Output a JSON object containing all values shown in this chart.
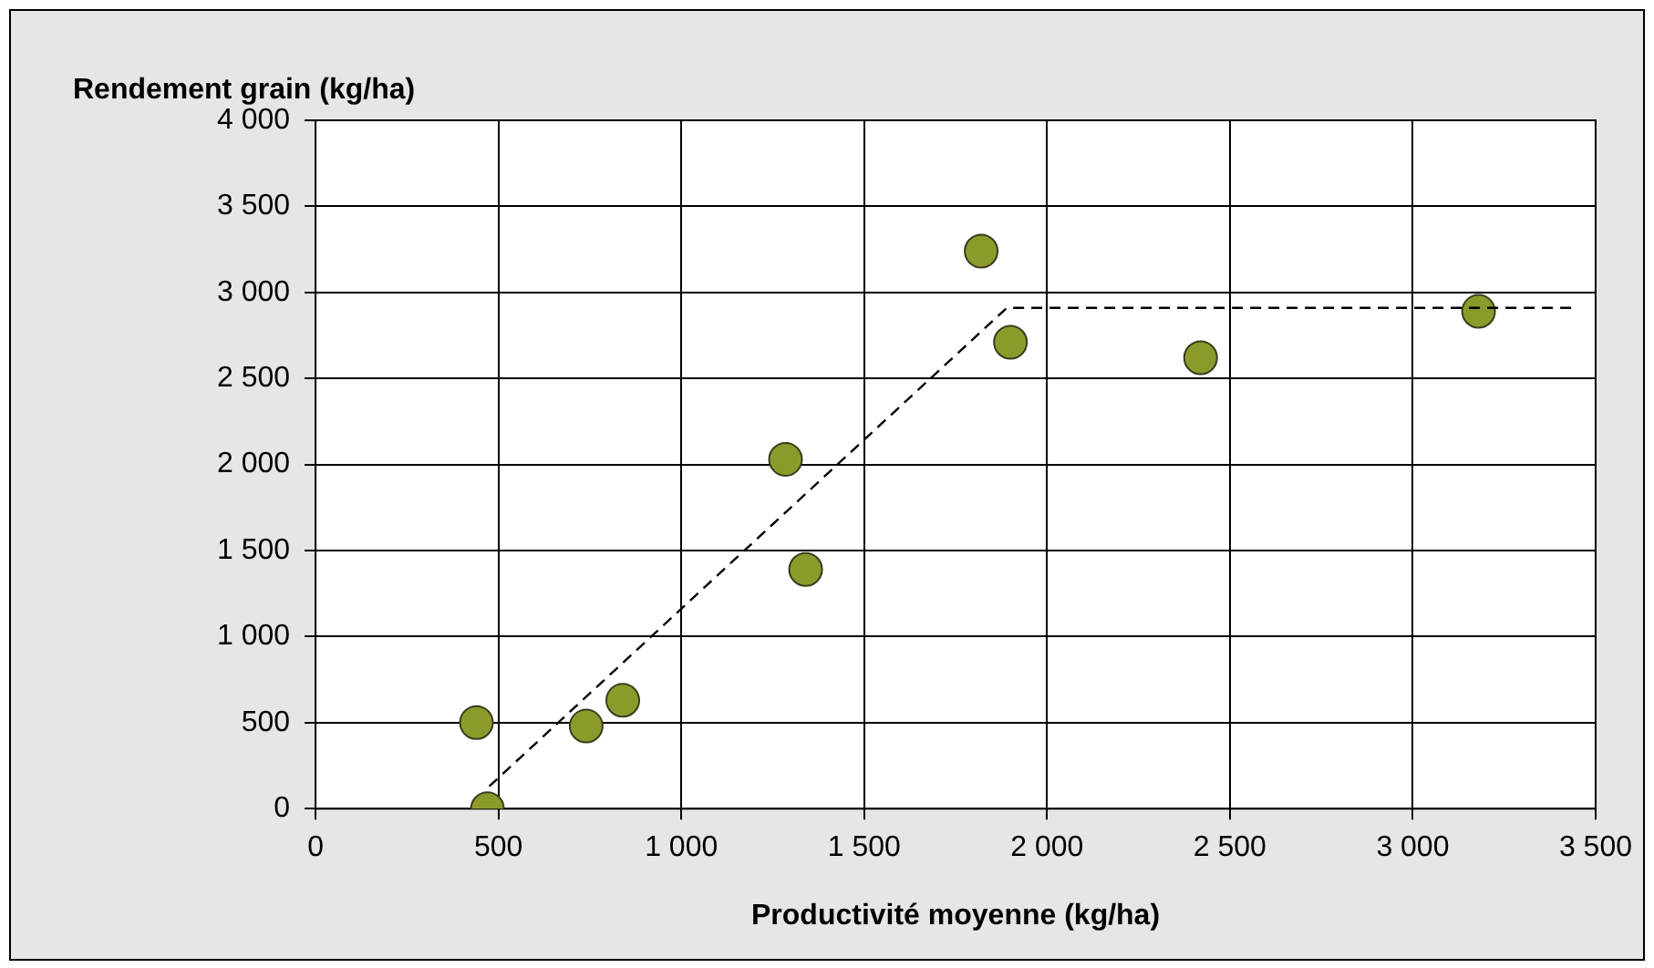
{
  "chart_data": {
    "type": "scatter",
    "xlabel": "Productivité moyenne (kg/ha)",
    "ylabel": "Rendement grain (kg/ha)",
    "xlim": [
      0,
      3500
    ],
    "ylim": [
      0,
      4000
    ],
    "xticks": [
      0,
      500,
      {
        "value": 1000,
        "label": "1 000"
      },
      {
        "value": 1500,
        "label": "1 500"
      },
      {
        "value": 2000,
        "label": "2 000"
      },
      {
        "value": 2500,
        "label": "2 500"
      },
      {
        "value": 3000,
        "label": "3 000"
      },
      {
        "value": 3500,
        "label": "3 500"
      }
    ],
    "yticks": [
      0,
      500,
      {
        "value": 1000,
        "label": "1 000"
      },
      {
        "value": 1500,
        "label": "1 500"
      },
      {
        "value": 2000,
        "label": "2 000"
      },
      {
        "value": 2500,
        "label": "2 500"
      },
      {
        "value": 3000,
        "label": "3 000"
      },
      {
        "value": 3500,
        "label": "3 500"
      },
      {
        "value": 4000,
        "label": "4 000"
      }
    ],
    "grid": true,
    "legend": false,
    "marker": "circle",
    "series": [
      {
        "color": "#8c9a2b",
        "x": [
          440,
          470,
          740,
          840,
          1285,
          1340,
          1820,
          1900,
          2420,
          3180
        ],
        "values": [
          500,
          0,
          480,
          630,
          2030,
          1390,
          3240,
          2710,
          2620,
          2890
        ]
      },
      {
        "type": "line",
        "color": "#000000",
        "line_style": "dashed",
        "marker": "none",
        "x": [
          475,
          1890,
          3445
        ],
        "values": [
          130,
          2910,
          2910
        ]
      }
    ]
  }
}
